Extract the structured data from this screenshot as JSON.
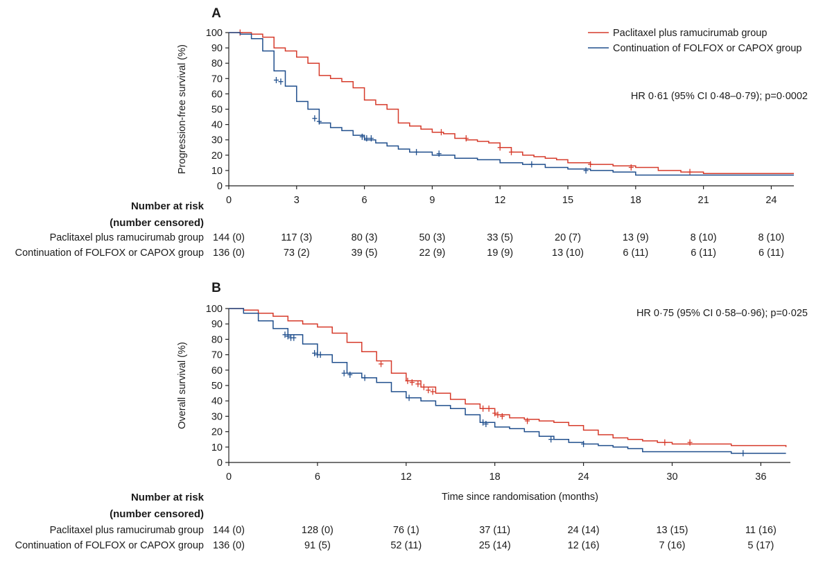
{
  "colors": {
    "red": "#d63a2a",
    "blue": "#1f4e8c"
  },
  "chart_data": [
    {
      "type": "line",
      "panel": "A",
      "ylabel": "Progression-free survival (%)",
      "xlabel": "",
      "xlim": [
        0,
        25
      ],
      "ylim": [
        0,
        100
      ],
      "xticks": [
        "0",
        "3",
        "6",
        "9",
        "12",
        "15",
        "18",
        "21",
        "24"
      ],
      "yticks": [
        "0",
        "10",
        "20",
        "30",
        "40",
        "50",
        "60",
        "70",
        "80",
        "90",
        "100"
      ],
      "annotation": "HR 0·61 (95% CI 0·48–0·79); p=0·0002",
      "legend": [
        "Paclitaxel plus ramucirumab group",
        "Continuation of FOLFOX or CAPOX group"
      ],
      "series": [
        {
          "name": "Paclitaxel plus ramucirumab group",
          "color": "red",
          "points": [
            [
              0,
              100
            ],
            [
              1.0,
              99
            ],
            [
              1.5,
              97
            ],
            [
              2,
              90
            ],
            [
              2.5,
              88
            ],
            [
              3,
              84
            ],
            [
              3.5,
              80
            ],
            [
              4,
              72
            ],
            [
              4.5,
              70
            ],
            [
              5,
              68
            ],
            [
              5.5,
              64
            ],
            [
              6,
              56
            ],
            [
              6.5,
              53
            ],
            [
              7,
              50
            ],
            [
              7.5,
              41
            ],
            [
              8,
              39
            ],
            [
              8.5,
              37
            ],
            [
              9,
              35
            ],
            [
              9.5,
              34
            ],
            [
              10,
              31
            ],
            [
              10.5,
              30
            ],
            [
              11,
              29
            ],
            [
              11.5,
              28
            ],
            [
              12,
              25
            ],
            [
              12.5,
              22
            ],
            [
              13,
              20
            ],
            [
              13.5,
              19
            ],
            [
              14,
              18
            ],
            [
              14.5,
              17
            ],
            [
              15,
              15
            ],
            [
              16,
              14
            ],
            [
              17,
              13
            ],
            [
              18,
              12
            ],
            [
              19,
              10
            ],
            [
              20,
              9
            ],
            [
              21,
              8
            ],
            [
              25,
              8
            ]
          ],
          "censors": [
            [
              0.5,
              100
            ],
            [
              9.4,
              35
            ],
            [
              10.5,
              31
            ],
            [
              12,
              25
            ],
            [
              12.5,
              22
            ],
            [
              16,
              14
            ],
            [
              17.8,
              12
            ],
            [
              20.4,
              9
            ]
          ]
        },
        {
          "name": "Continuation of FOLFOX or CAPOX group",
          "color": "blue",
          "points": [
            [
              0,
              100
            ],
            [
              0.5,
              99
            ],
            [
              1,
              96
            ],
            [
              1.5,
              88
            ],
            [
              2,
              75
            ],
            [
              2.5,
              65
            ],
            [
              3,
              55
            ],
            [
              3.5,
              50
            ],
            [
              4,
              41
            ],
            [
              4.5,
              38
            ],
            [
              5,
              36
            ],
            [
              5.5,
              33
            ],
            [
              6,
              30
            ],
            [
              6.5,
              28
            ],
            [
              7,
              26
            ],
            [
              7.5,
              24
            ],
            [
              8,
              22
            ],
            [
              8.5,
              22
            ],
            [
              9,
              20
            ],
            [
              10,
              18
            ],
            [
              11,
              17
            ],
            [
              12,
              15
            ],
            [
              13,
              14
            ],
            [
              14,
              12
            ],
            [
              15,
              11
            ],
            [
              16,
              10
            ],
            [
              17,
              9
            ],
            [
              18,
              7
            ],
            [
              25,
              7
            ]
          ],
          "censors": [
            [
              2.1,
              69
            ],
            [
              2.3,
              68
            ],
            [
              3.8,
              44
            ],
            [
              4.0,
              42
            ],
            [
              5.9,
              32
            ],
            [
              6.1,
              31
            ],
            [
              6.3,
              31
            ],
            [
              8.3,
              22
            ],
            [
              9.3,
              21
            ],
            [
              13.4,
              14
            ],
            [
              15.8,
              10
            ]
          ]
        }
      ],
      "risk_table": {
        "heading": [
          "Number at risk",
          "(number censored)"
        ],
        "rows": [
          {
            "label": "Paclitaxel plus ramucirumab group",
            "values": [
              "144 (0)",
              "117 (3)",
              "80 (3)",
              "50 (3)",
              "33 (5)",
              "20 (7)",
              "13 (9)",
              "8 (10)",
              "8 (10)"
            ]
          },
          {
            "label": "Continuation of FOLFOX or CAPOX group",
            "values": [
              "136 (0)",
              "73 (2)",
              "39 (5)",
              "22 (9)",
              "19 (9)",
              "13 (10)",
              "6 (11)",
              "6 (11)",
              "6 (11)"
            ]
          }
        ]
      }
    },
    {
      "type": "line",
      "panel": "B",
      "ylabel": "Overall survival (%)",
      "xlabel": "Time since randomisation (months)",
      "xlim": [
        0,
        38
      ],
      "ylim": [
        0,
        100
      ],
      "xticks": [
        "0",
        "6",
        "12",
        "18",
        "24",
        "30",
        "36"
      ],
      "yticks": [
        "0",
        "10",
        "20",
        "30",
        "40",
        "50",
        "60",
        "70",
        "80",
        "90",
        "100"
      ],
      "annotation": "HR 0·75 (95% CI 0·58–0·96); p=0·025",
      "legend": [],
      "series": [
        {
          "name": "Paclitaxel plus ramucirumab group",
          "color": "red",
          "points": [
            [
              0,
              100
            ],
            [
              1,
              99
            ],
            [
              2,
              97
            ],
            [
              3,
              95
            ],
            [
              4,
              92
            ],
            [
              5,
              90
            ],
            [
              6,
              88
            ],
            [
              7,
              84
            ],
            [
              8,
              78
            ],
            [
              9,
              72
            ],
            [
              10,
              66
            ],
            [
              11,
              58
            ],
            [
              12,
              53
            ],
            [
              13,
              49
            ],
            [
              14,
              45
            ],
            [
              15,
              41
            ],
            [
              16,
              38
            ],
            [
              17,
              35
            ],
            [
              18,
              31
            ],
            [
              19,
              29
            ],
            [
              20,
              28
            ],
            [
              21,
              27
            ],
            [
              22,
              26
            ],
            [
              23,
              24
            ],
            [
              24,
              21
            ],
            [
              25,
              18
            ],
            [
              26,
              16
            ],
            [
              27,
              15
            ],
            [
              28,
              14
            ],
            [
              29,
              13
            ],
            [
              30,
              12
            ],
            [
              32,
              12
            ],
            [
              34,
              11
            ],
            [
              37,
              11
            ],
            [
              37.7,
              10
            ]
          ],
          "censors": [
            [
              10.3,
              64
            ],
            [
              12.1,
              53
            ],
            [
              12.4,
              52
            ],
            [
              12.8,
              51
            ],
            [
              13.2,
              49
            ],
            [
              13.5,
              47
            ],
            [
              13.8,
              46
            ],
            [
              17.2,
              35
            ],
            [
              17.6,
              35
            ],
            [
              18.0,
              32
            ],
            [
              18.2,
              31
            ],
            [
              18.5,
              30
            ],
            [
              20.2,
              27
            ],
            [
              29.5,
              13
            ],
            [
              31.2,
              13
            ]
          ]
        },
        {
          "name": "Continuation of FOLFOX or CAPOX group",
          "color": "blue",
          "points": [
            [
              0,
              100
            ],
            [
              1,
              97
            ],
            [
              2,
              92
            ],
            [
              3,
              87
            ],
            [
              4,
              83
            ],
            [
              5,
              77
            ],
            [
              6,
              70
            ],
            [
              7,
              65
            ],
            [
              8,
              58
            ],
            [
              9,
              55
            ],
            [
              10,
              52
            ],
            [
              11,
              46
            ],
            [
              12,
              42
            ],
            [
              13,
              40
            ],
            [
              14,
              37
            ],
            [
              15,
              35
            ],
            [
              16,
              31
            ],
            [
              17,
              26
            ],
            [
              18,
              23
            ],
            [
              19,
              22
            ],
            [
              20,
              20
            ],
            [
              21,
              17
            ],
            [
              22,
              15
            ],
            [
              23,
              13
            ],
            [
              24,
              12
            ],
            [
              25,
              11
            ],
            [
              26,
              10
            ],
            [
              27,
              9
            ],
            [
              28,
              7
            ],
            [
              30,
              7
            ],
            [
              32,
              7
            ],
            [
              34,
              6
            ],
            [
              37.7,
              6
            ]
          ],
          "censors": [
            [
              3.8,
              83
            ],
            [
              4.0,
              82
            ],
            [
              4.2,
              81
            ],
            [
              4.4,
              81
            ],
            [
              5.8,
              71
            ],
            [
              6.0,
              70
            ],
            [
              6.2,
              70
            ],
            [
              7.8,
              58
            ],
            [
              8.2,
              57
            ],
            [
              9.2,
              55
            ],
            [
              12.2,
              42
            ],
            [
              17.2,
              26
            ],
            [
              17.4,
              25
            ],
            [
              21.8,
              15
            ],
            [
              24.0,
              12
            ],
            [
              34.8,
              6
            ]
          ]
        }
      ],
      "risk_table": {
        "heading": [
          "Number at risk",
          "(number censored)"
        ],
        "rows": [
          {
            "label": "Paclitaxel plus ramucirumab group",
            "values": [
              "144 (0)",
              "128 (0)",
              "76 (1)",
              "37 (11)",
              "24 (14)",
              "13 (15)",
              "11 (16)"
            ]
          },
          {
            "label": "Continuation of FOLFOX or CAPOX group",
            "values": [
              "136 (0)",
              "91 (5)",
              "52 (11)",
              "25 (14)",
              "12 (16)",
              "7 (16)",
              "5 (17)"
            ]
          }
        ]
      }
    }
  ]
}
